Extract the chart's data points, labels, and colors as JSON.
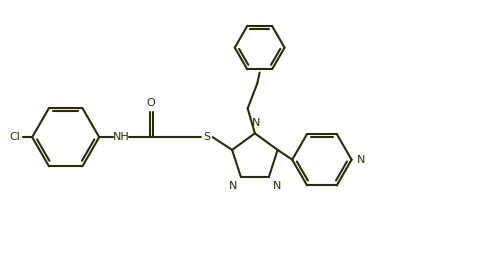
{
  "background_color": "#ffffff",
  "line_color": "#2a2a0a",
  "line_width": 1.5,
  "figsize": [
    4.81,
    2.6
  ],
  "dpi": 100,
  "xlim": [
    0,
    10.0
  ],
  "ylim": [
    0,
    5.4
  ]
}
